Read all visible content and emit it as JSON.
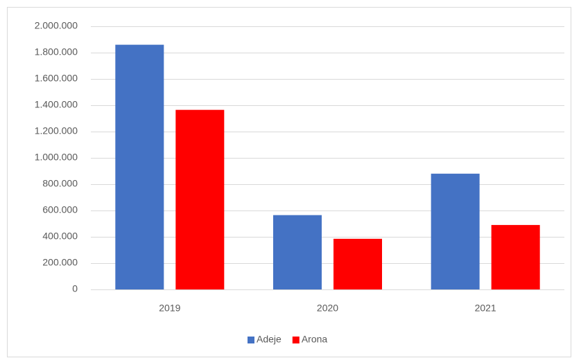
{
  "chart_data": {
    "type": "bar",
    "categories": [
      "2019",
      "2020",
      "2021"
    ],
    "series": [
      {
        "name": "Adeje",
        "color": "#4472c4",
        "values": [
          1860000,
          565000,
          880000
        ]
      },
      {
        "name": "Arona",
        "color": "#ff0000",
        "values": [
          1365000,
          385000,
          490000
        ]
      }
    ],
    "ylim": [
      0,
      2000000
    ],
    "yticks": [
      0,
      {
        "value": 200000,
        "label": "200.000"
      },
      {
        "value": 400000,
        "label": "400.000"
      },
      {
        "value": 600000,
        "label": "600.000"
      },
      {
        "value": 800000,
        "label": "800.000"
      },
      {
        "value": 1000000,
        "label": "1.000.000"
      },
      {
        "value": 1200000,
        "label": "1.200.000"
      },
      {
        "value": 1400000,
        "label": "1.400.000"
      },
      {
        "value": 1600000,
        "label": "1.600.000"
      },
      {
        "value": 1800000,
        "label": "1.800.000"
      },
      {
        "value": 2000000,
        "label": "2.000.000"
      }
    ],
    "grid": true,
    "legend": "bottom"
  }
}
